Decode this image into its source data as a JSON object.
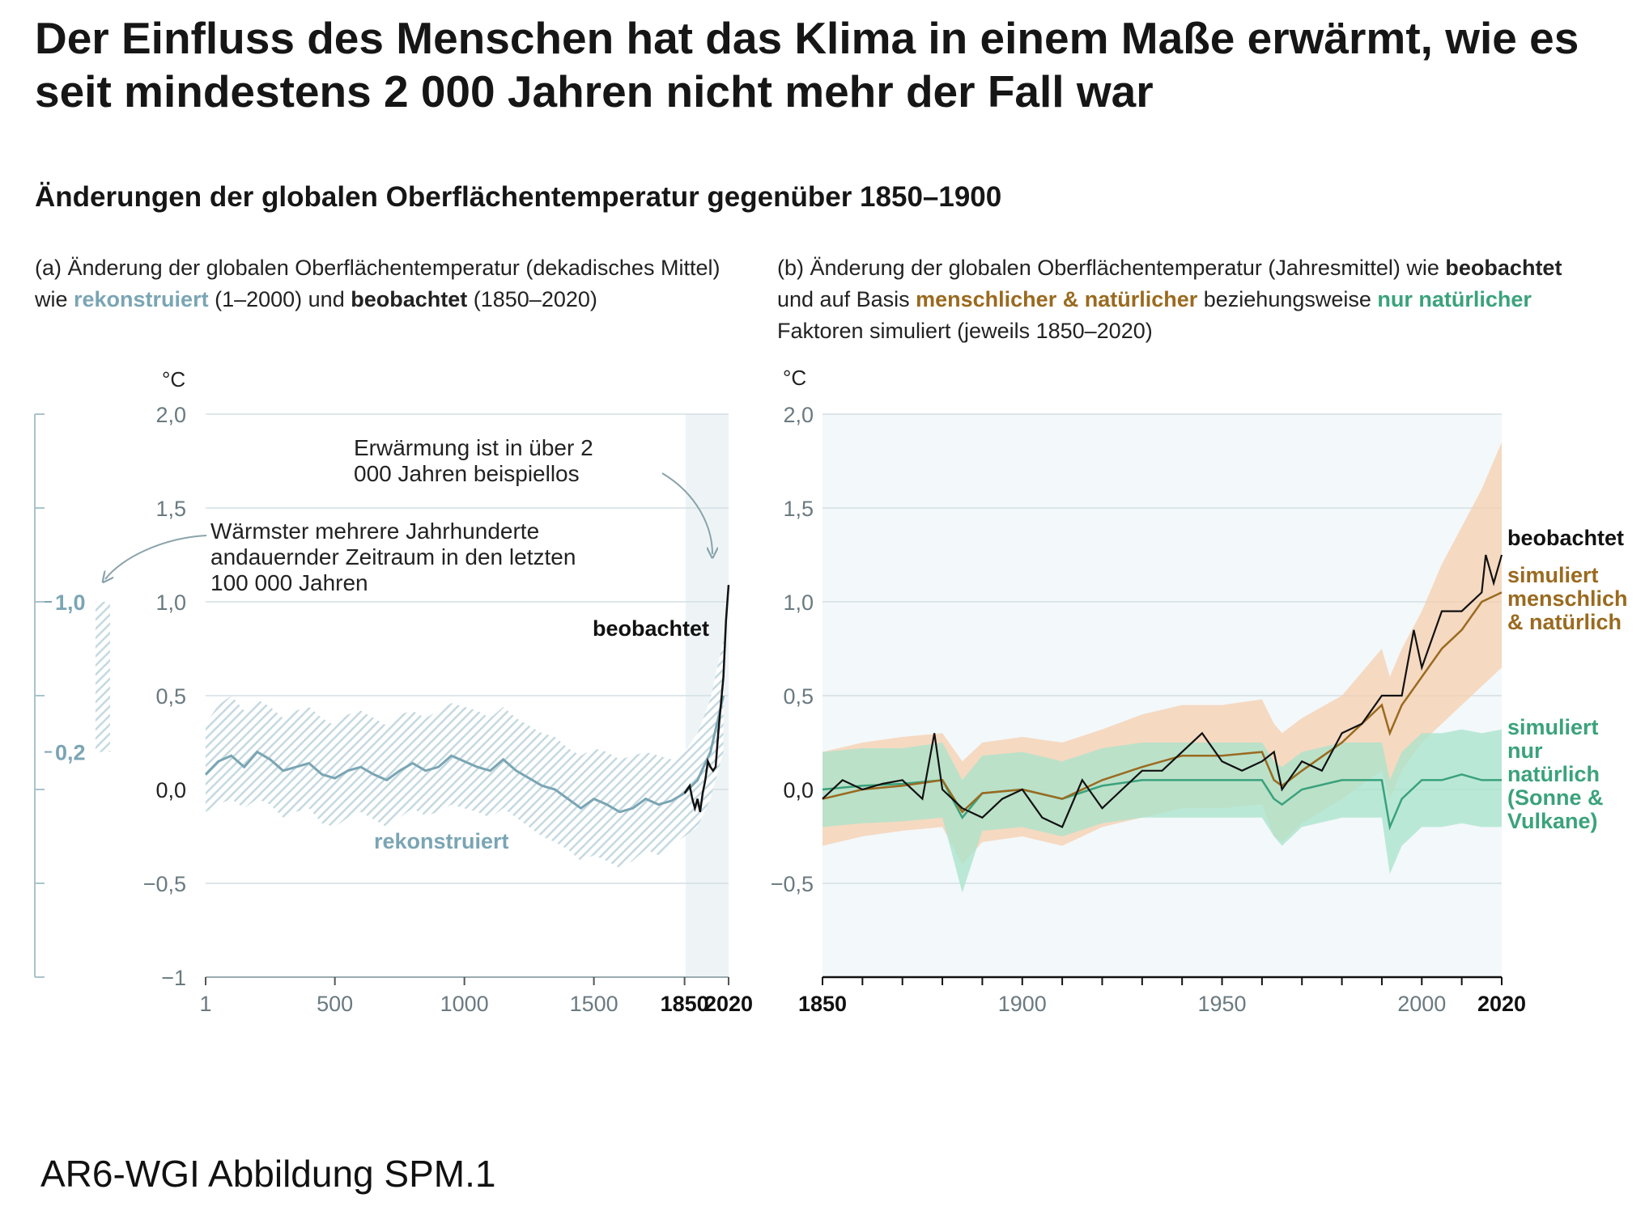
{
  "title": "Der Einfluss des Menschen hat das Klima in einem Maße erwärmt, wie es seit mindestens 2 000 Jahren nicht mehr der Fall war",
  "subtitle": "Änderungen der globalen Oberflächentemperatur gegenüber 1850–1900",
  "footer": "AR6-WGI Abbildung SPM.1",
  "caption_a": {
    "p1": "(a) Änderung der globalen Oberflächentemperatur (dekadisches Mittel) wie ",
    "recon": "rekonstruiert",
    "p2": " (1–2000) und ",
    "obs": "beobachtet",
    "p3": " (1850–2020)"
  },
  "caption_b": {
    "p1": "(b) Änderung der globalen Oberflächentemperatur (Jahresmittel) wie ",
    "obs": "beobachtet",
    "p2": " und auf Basis ",
    "human": "menschlicher & natürlicher",
    "p3": " beziehungsweise ",
    "nat": "nur natürlicher",
    "p4": " Faktoren simuliert (jeweils 1850–2020)"
  },
  "colors": {
    "reconstructed": "#7aa5b4",
    "reconstructed_band": "#c5d9e0",
    "observed": "#111111",
    "human_natural": "#9a6a1f",
    "human_band": "#f5cfae",
    "natural_only": "#3aa27c",
    "natural_band": "#a7e3cb",
    "recent_shade": "#eef4f6",
    "grid": "#d4dfe3",
    "axis_text": "#6a7a80"
  },
  "chart_data": [
    {
      "id": "a",
      "type": "line",
      "y_unit": "°C",
      "ylim": [
        -1,
        2
      ],
      "xlim": [
        1,
        2020
      ],
      "grid": true,
      "y_ticks": [
        "2,0",
        "1,5",
        "1,0",
        "0,5",
        "0,0",
        "−0,5",
        "−1"
      ],
      "y_tick_values": [
        2,
        1.5,
        1,
        0.5,
        0,
        -0.5,
        -1
      ],
      "x_ticks": [
        "1",
        "500",
        "1000",
        "1500",
        "1850",
        "2020"
      ],
      "x_tick_values": [
        1,
        500,
        1000,
        1500,
        1850,
        2020
      ],
      "x_ticks_bold": [
        "1850",
        "2020"
      ],
      "shaded_period": [
        1850,
        2020
      ],
      "series": [
        {
          "name": "rekonstruiert",
          "x": [
            1,
            50,
            100,
            150,
            200,
            250,
            300,
            350,
            400,
            450,
            500,
            550,
            600,
            650,
            700,
            750,
            800,
            850,
            900,
            950,
            1000,
            1050,
            1100,
            1150,
            1200,
            1250,
            1300,
            1350,
            1400,
            1450,
            1500,
            1550,
            1600,
            1650,
            1700,
            1750,
            1800,
            1850,
            1900,
            1950,
            2000
          ],
          "y": [
            0.08,
            0.15,
            0.18,
            0.12,
            0.2,
            0.16,
            0.1,
            0.12,
            0.14,
            0.08,
            0.06,
            0.1,
            0.12,
            0.08,
            0.05,
            0.1,
            0.14,
            0.1,
            0.12,
            0.18,
            0.15,
            0.12,
            0.1,
            0.16,
            0.1,
            0.06,
            0.02,
            0.0,
            -0.05,
            -0.1,
            -0.05,
            -0.08,
            -0.12,
            -0.1,
            -0.05,
            -0.08,
            -0.06,
            -0.02,
            0.05,
            0.2,
            0.5
          ],
          "upper": [
            0.35,
            0.45,
            0.5,
            0.42,
            0.48,
            0.44,
            0.38,
            0.42,
            0.44,
            0.38,
            0.34,
            0.4,
            0.42,
            0.38,
            0.34,
            0.4,
            0.42,
            0.38,
            0.42,
            0.46,
            0.44,
            0.42,
            0.38,
            0.44,
            0.38,
            0.34,
            0.3,
            0.28,
            0.22,
            0.18,
            0.22,
            0.2,
            0.16,
            0.18,
            0.2,
            0.18,
            0.16,
            0.2,
            0.3,
            0.48,
            0.8
          ],
          "lower": [
            -0.12,
            -0.08,
            -0.05,
            -0.1,
            -0.05,
            -0.08,
            -0.15,
            -0.12,
            -0.1,
            -0.18,
            -0.2,
            -0.15,
            -0.12,
            -0.16,
            -0.2,
            -0.15,
            -0.1,
            -0.14,
            -0.12,
            -0.08,
            -0.1,
            -0.12,
            -0.15,
            -0.1,
            -0.15,
            -0.2,
            -0.25,
            -0.28,
            -0.32,
            -0.38,
            -0.35,
            -0.38,
            -0.42,
            -0.38,
            -0.32,
            -0.35,
            -0.3,
            -0.25,
            -0.2,
            -0.05,
            0.2
          ],
          "label": "rekonstruiert",
          "color": "#7aa5b4"
        },
        {
          "name": "beobachtet",
          "x": [
            1850,
            1860,
            1870,
            1880,
            1890,
            1900,
            1910,
            1920,
            1930,
            1940,
            1950,
            1960,
            1970,
            1980,
            1990,
            2000,
            2010,
            2020
          ],
          "y": [
            -0.02,
            0.0,
            0.02,
            -0.05,
            -0.1,
            -0.05,
            -0.12,
            -0.02,
            0.05,
            0.15,
            0.12,
            0.1,
            0.12,
            0.3,
            0.45,
            0.6,
            0.9,
            1.09
          ],
          "label": "beobachtet",
          "color": "#111111"
        }
      ],
      "side_bar": {
        "range": [
          0.2,
          1.0
        ],
        "labels": [
          "1,0",
          "0,2"
        ]
      },
      "annotations": {
        "recent": "Erwärmung ist in über 2 000 Jahren beispiellos",
        "warm_period": "Wärmster mehrere Jahrhunderte andauernder Zeitraum in den letzten 100 000 Jahren"
      }
    },
    {
      "id": "b",
      "type": "line",
      "y_unit": "°C",
      "ylim": [
        -1,
        2
      ],
      "xlim": [
        1850,
        2020
      ],
      "grid": true,
      "y_ticks": [
        "2,0",
        "1,5",
        "1,0",
        "0,5",
        "0,0",
        "−0,5"
      ],
      "y_tick_values": [
        2,
        1.5,
        1,
        0.5,
        0,
        -0.5
      ],
      "x_ticks": [
        "1850",
        "1900",
        "1950",
        "2000",
        "2020"
      ],
      "x_tick_values": [
        1850,
        1900,
        1950,
        2000,
        2020
      ],
      "x_ticks_bold": [
        "1850",
        "2020"
      ],
      "series": [
        {
          "name": "simuliert menschlich & natürlich",
          "x": [
            1850,
            1860,
            1870,
            1880,
            1885,
            1890,
            1900,
            1910,
            1920,
            1930,
            1940,
            1950,
            1960,
            1963,
            1965,
            1970,
            1980,
            1990,
            1992,
            1995,
            2000,
            2005,
            2010,
            2015,
            2020
          ],
          "y": [
            -0.05,
            0.0,
            0.02,
            0.05,
            -0.12,
            -0.02,
            0.0,
            -0.05,
            0.05,
            0.12,
            0.18,
            0.18,
            0.2,
            0.05,
            0.02,
            0.1,
            0.25,
            0.45,
            0.3,
            0.45,
            0.6,
            0.75,
            0.85,
            1.0,
            1.05
          ],
          "upper": [
            0.2,
            0.25,
            0.28,
            0.3,
            0.15,
            0.25,
            0.28,
            0.25,
            0.32,
            0.4,
            0.45,
            0.45,
            0.48,
            0.35,
            0.3,
            0.38,
            0.5,
            0.75,
            0.6,
            0.75,
            0.95,
            1.2,
            1.4,
            1.6,
            1.85
          ],
          "lower": [
            -0.3,
            -0.25,
            -0.22,
            -0.2,
            -0.4,
            -0.28,
            -0.25,
            -0.3,
            -0.2,
            -0.15,
            -0.1,
            -0.1,
            -0.08,
            -0.25,
            -0.28,
            -0.18,
            -0.05,
            0.1,
            -0.05,
            0.1,
            0.25,
            0.35,
            0.45,
            0.55,
            0.65
          ],
          "label": "simuliert menschlich & natürlich",
          "color": "#9a6a1f"
        },
        {
          "name": "simuliert nur natürlich (Sonne & Vulkane)",
          "x": [
            1850,
            1860,
            1870,
            1880,
            1885,
            1890,
            1900,
            1910,
            1920,
            1930,
            1940,
            1950,
            1960,
            1963,
            1965,
            1970,
            1980,
            1990,
            1992,
            1995,
            2000,
            2005,
            2010,
            2015,
            2020
          ],
          "y": [
            0.0,
            0.02,
            0.03,
            0.05,
            -0.15,
            -0.02,
            0.0,
            -0.05,
            0.02,
            0.05,
            0.05,
            0.05,
            0.05,
            -0.05,
            -0.08,
            0.0,
            0.05,
            0.05,
            -0.2,
            -0.05,
            0.05,
            0.05,
            0.08,
            0.05,
            0.05
          ],
          "upper": [
            0.2,
            0.22,
            0.22,
            0.25,
            0.05,
            0.18,
            0.2,
            0.15,
            0.22,
            0.25,
            0.25,
            0.25,
            0.25,
            0.15,
            0.12,
            0.2,
            0.25,
            0.25,
            0.05,
            0.2,
            0.3,
            0.3,
            0.32,
            0.3,
            0.32
          ],
          "lower": [
            -0.2,
            -0.18,
            -0.17,
            -0.15,
            -0.55,
            -0.22,
            -0.2,
            -0.25,
            -0.18,
            -0.15,
            -0.15,
            -0.15,
            -0.15,
            -0.25,
            -0.3,
            -0.2,
            -0.15,
            -0.15,
            -0.45,
            -0.3,
            -0.2,
            -0.2,
            -0.18,
            -0.2,
            -0.2
          ],
          "label": "simuliert nur natürlich (Sonne & Vulkane)",
          "color": "#3aa27c"
        },
        {
          "name": "beobachtet",
          "x": [
            1850,
            1855,
            1860,
            1865,
            1870,
            1875,
            1878,
            1880,
            1885,
            1890,
            1895,
            1900,
            1905,
            1910,
            1915,
            1920,
            1925,
            1930,
            1935,
            1940,
            1945,
            1950,
            1955,
            1960,
            1963,
            1965,
            1970,
            1975,
            1980,
            1985,
            1990,
            1995,
            1998,
            2000,
            2005,
            2010,
            2015,
            2016,
            2018,
            2020
          ],
          "y": [
            -0.05,
            0.05,
            0.0,
            0.03,
            0.05,
            -0.05,
            0.3,
            0.0,
            -0.1,
            -0.15,
            -0.05,
            0.0,
            -0.15,
            -0.2,
            0.05,
            -0.1,
            0.0,
            0.1,
            0.1,
            0.2,
            0.3,
            0.15,
            0.1,
            0.15,
            0.2,
            0.0,
            0.15,
            0.1,
            0.3,
            0.35,
            0.5,
            0.5,
            0.85,
            0.65,
            0.95,
            0.95,
            1.05,
            1.25,
            1.1,
            1.25
          ],
          "label": "beobachtet",
          "color": "#111111"
        }
      ],
      "labels": {
        "observed": "beobachtet",
        "human": [
          "simuliert",
          "menschlich",
          "& natürlich"
        ],
        "natural": [
          "simuliert",
          "nur",
          "natürlich",
          "(Sonne &",
          "Vulkane)"
        ]
      }
    }
  ]
}
